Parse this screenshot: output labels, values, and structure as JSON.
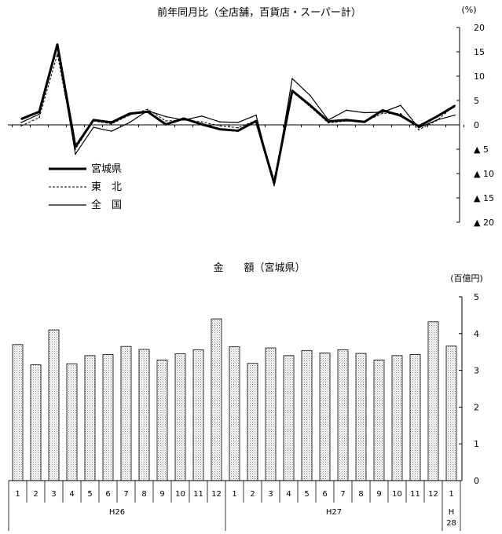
{
  "chart_data": [
    {
      "type": "line",
      "title": "前年同月比（全店舗，百貨店・スーパー計）",
      "unit": "(%)",
      "y_tick_labels": [
        "20",
        "15",
        "10",
        "5",
        "0",
        "▲ 5",
        "▲ 10",
        "▲ 15",
        "▲ 20"
      ],
      "ylim": [
        -20,
        20
      ],
      "x": [
        "H26.1",
        "H26.2",
        "H26.3",
        "H26.4",
        "H26.5",
        "H26.6",
        "H26.7",
        "H26.8",
        "H26.9",
        "H26.10",
        "H26.11",
        "H26.12",
        "H27.1",
        "H27.2",
        "H27.3",
        "H27.4",
        "H27.5",
        "H27.6",
        "H27.7",
        "H27.8",
        "H27.9",
        "H27.10",
        "H27.11",
        "H27.12",
        "H28.1"
      ],
      "legend_placement": "lower-left",
      "series": [
        {
          "name": "宮城県",
          "style": "thick-solid",
          "color": "#000000",
          "values": [
            1.2,
            2.7,
            16.5,
            -4.5,
            1.0,
            0.5,
            2.3,
            2.7,
            0.1,
            1.3,
            0.1,
            -0.9,
            -1.2,
            0.8,
            -12.0,
            7.0,
            4.0,
            0.7,
            1.0,
            0.6,
            3.0,
            1.9,
            -0.3,
            1.7,
            3.9
          ]
        },
        {
          "name": "東　北",
          "style": "dashed",
          "color": "#000000",
          "values": [
            -0.2,
            1.5,
            14.5,
            -5.0,
            0.8,
            0.2,
            2.0,
            3.2,
            0.8,
            1.0,
            0.6,
            -0.2,
            -0.6,
            0.9,
            -11.2,
            6.8,
            3.7,
            0.4,
            0.8,
            0.6,
            2.4,
            2.3,
            -1.0,
            0.9,
            4.0
          ]
        },
        {
          "name": "全　国",
          "style": "thin-solid",
          "color": "#000000",
          "values": [
            0.5,
            2.2,
            16.0,
            -6.0,
            -0.5,
            -1.3,
            0.5,
            2.9,
            1.7,
            1.0,
            1.8,
            0.6,
            0.5,
            2.0,
            -12.5,
            9.5,
            6.0,
            1.0,
            3.0,
            2.5,
            2.6,
            4.0,
            -0.6,
            1.0,
            2.0
          ]
        }
      ]
    },
    {
      "type": "bar",
      "title": "金　　額（宮城県）",
      "unit": "(百億円)",
      "ylim": [
        0,
        5
      ],
      "y_ticks": [
        0,
        1,
        2,
        3,
        4,
        5
      ],
      "month_labels": [
        "1",
        "2",
        "3",
        "4",
        "5",
        "6",
        "7",
        "8",
        "9",
        "10",
        "11",
        "12",
        "1",
        "2",
        "3",
        "4",
        "5",
        "6",
        "7",
        "8",
        "9",
        "10",
        "11",
        "12",
        "1"
      ],
      "year_groups": [
        {
          "label": "H26",
          "months": 12
        },
        {
          "label": "H27",
          "months": 12
        },
        {
          "label": "H\n28",
          "months": 1
        }
      ],
      "values": [
        3.7,
        3.15,
        4.1,
        3.18,
        3.4,
        3.43,
        3.65,
        3.57,
        3.28,
        3.45,
        3.56,
        4.4,
        3.64,
        3.19,
        3.61,
        3.4,
        3.54,
        3.47,
        3.56,
        3.46,
        3.28,
        3.4,
        3.43,
        4.32,
        3.66
      ],
      "fill": "dotted-gray"
    }
  ]
}
